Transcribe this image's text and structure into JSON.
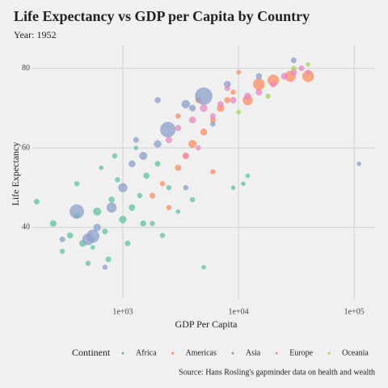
{
  "chart_data": {
    "type": "scatter",
    "title": "Life Expectancy vs GDP per Capita by Country",
    "subtitle": "Year: 1952",
    "x_label": "GDP Per Capita",
    "y_label": "Life Expectancy",
    "legend_title": "Continent",
    "caption": "Source: Hans Rosling's gapminder data on health and wealth",
    "x_log": true,
    "grid": true,
    "legend_position": "bottom",
    "xlim": [
      165,
      154000
    ],
    "ylim": [
      22,
      86
    ],
    "xticks": [
      {
        "value": 1000,
        "label": "1e+03"
      },
      {
        "value": 10000,
        "label": "1e+04"
      },
      {
        "value": 100000,
        "label": "1e+05"
      }
    ],
    "yticks": [
      40,
      60,
      80
    ],
    "series": [
      {
        "name": "Africa",
        "color": "#66c2a5",
        "x": [
          180,
          250,
          300,
          350,
          400,
          450,
          500,
          600,
          700,
          800,
          900,
          1000,
          1100,
          1200,
          1400,
          1600,
          1800,
          2000,
          2500,
          3000,
          4000,
          5000,
          400,
          650,
          850,
          1300,
          750,
          550,
          2200,
          1500,
          9000,
          11000,
          12000
        ],
        "values": [
          46.5,
          41,
          34,
          38,
          43,
          36,
          31,
          44,
          39,
          47,
          52,
          42,
          36,
          45,
          48,
          53,
          41,
          56,
          50,
          44,
          47,
          30,
          51,
          55,
          58,
          60,
          32,
          35,
          38,
          41,
          50,
          51,
          53
        ],
        "sizes": [
          3,
          5,
          2,
          4,
          3,
          6,
          2,
          10,
          3,
          4,
          2,
          8,
          3,
          5,
          2,
          4,
          2,
          3,
          2,
          1,
          2,
          1,
          2,
          1,
          2,
          1,
          3,
          1,
          2,
          4,
          1,
          1,
          1
        ]
      },
      {
        "name": "Americas",
        "color": "#fc8d62",
        "x": [
          1800,
          2200,
          2500,
          3000,
          3500,
          4000,
          5000,
          6000,
          7000,
          8000,
          9000,
          12000,
          15000,
          20000,
          28000,
          40000,
          3000,
          4500,
          6000,
          10000
        ],
        "values": [
          48,
          51,
          45,
          55,
          58,
          61,
          64,
          67,
          70,
          72,
          74,
          72,
          76,
          77,
          78,
          78,
          68,
          72,
          54,
          79
        ],
        "sizes": [
          3,
          2,
          2,
          4,
          5,
          10,
          6,
          3,
          8,
          4,
          2,
          20,
          30,
          28,
          25,
          30,
          2,
          3,
          2,
          1
        ]
      },
      {
        "name": "Asia",
        "color": "#8da0cb",
        "x": [
          400,
          550,
          300,
          600,
          800,
          1000,
          1200,
          1500,
          2000,
          2450,
          3500,
          4000,
          5000,
          8000,
          15000,
          30000,
          110000,
          700,
          3500,
          1300,
          2000,
          6000,
          500
        ],
        "values": [
          44,
          37.8,
          37,
          40,
          45,
          50,
          56,
          58,
          61,
          64.6,
          71,
          70,
          73,
          76,
          78,
          82,
          56,
          30,
          50,
          62,
          72,
          66,
          37
        ],
        "sizes": [
          50,
          40,
          3,
          8,
          20,
          15,
          6,
          10,
          8,
          60,
          12,
          5,
          80,
          6,
          4,
          3,
          1,
          2,
          2,
          3,
          4,
          2,
          30
        ]
      },
      {
        "name": "Europe",
        "color": "#e78ac3",
        "x": [
          2500,
          3000,
          4000,
          5000,
          6000,
          7000,
          9000,
          12000,
          15000,
          20000,
          25000,
          30000,
          35000,
          40000,
          8000,
          4500,
          3500
        ],
        "values": [
          62,
          65,
          67,
          70,
          68,
          71,
          72,
          73,
          74,
          76,
          78,
          79,
          80,
          79,
          75,
          60,
          58
        ],
        "sizes": [
          5,
          4,
          6,
          8,
          3,
          4,
          5,
          6,
          5,
          4,
          6,
          5,
          3,
          2,
          3,
          2,
          2
        ]
      },
      {
        "name": "Oceania",
        "color": "#a6d854",
        "x": [
          10000,
          18000,
          30000,
          40000
        ],
        "values": [
          69,
          73,
          80,
          81
        ],
        "sizes": [
          1,
          2,
          2,
          1
        ]
      }
    ]
  }
}
